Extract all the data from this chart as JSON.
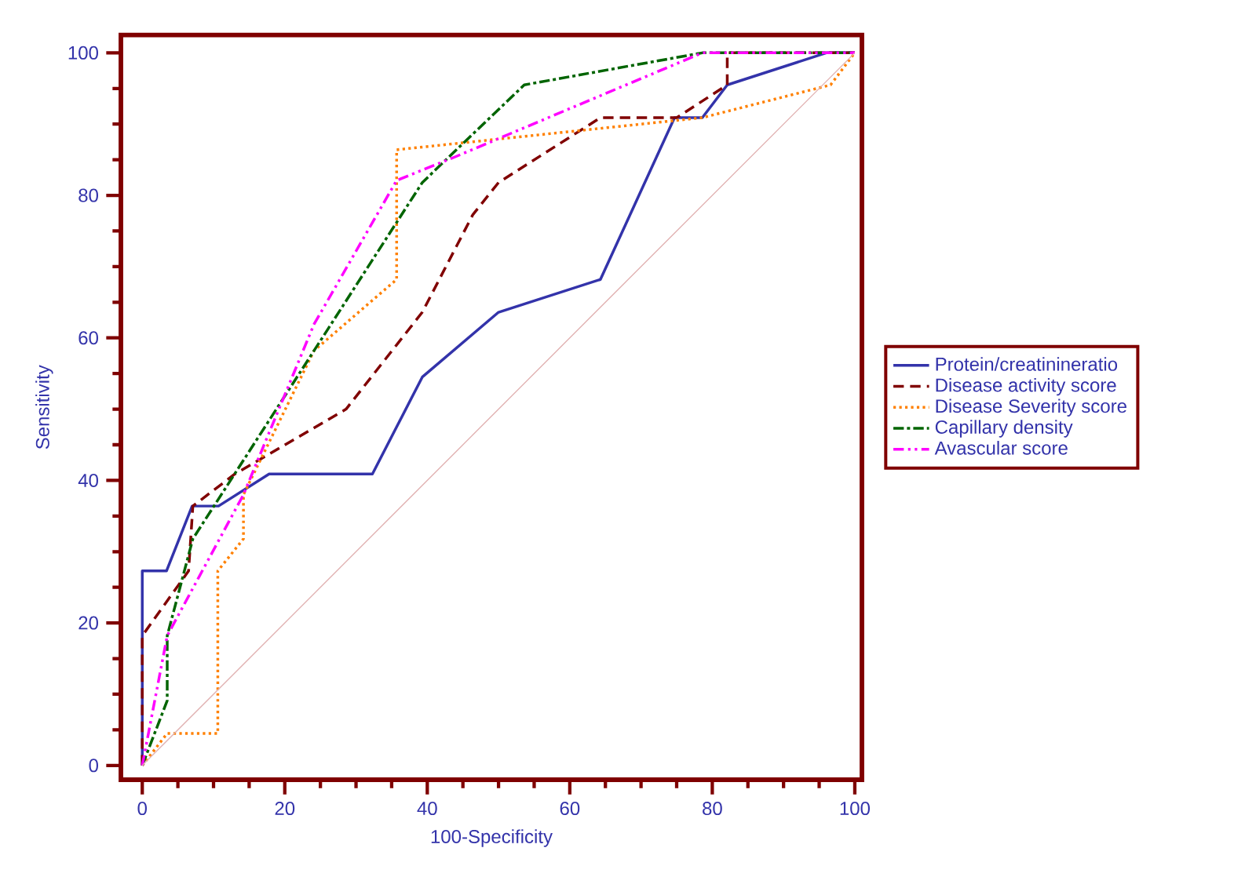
{
  "chart_data": {
    "type": "line",
    "xlabel": "100-Specificity",
    "ylabel": "Sensitivity",
    "xlim": [
      -3,
      101
    ],
    "ylim": [
      -2,
      102.5
    ],
    "xticks": [
      0,
      20,
      40,
      60,
      80,
      100
    ],
    "yticks": [
      0,
      20,
      40,
      60,
      80,
      100
    ],
    "legend": "right",
    "series": [
      {
        "name": "Protein/creatinineratio",
        "color": "#3333aa",
        "line_style": "solid",
        "x": [
          0,
          0,
          3.4,
          7.0,
          10.7,
          17.8,
          32.3,
          39.3,
          50,
          64.3,
          74.7,
          78.6,
          82.1,
          96,
          100
        ],
        "values": [
          0,
          27.3,
          27.3,
          36.4,
          36.4,
          40.9,
          40.9,
          54.5,
          63.6,
          68.2,
          90.9,
          90.9,
          95.5,
          100,
          100
        ]
      },
      {
        "name": "Disease activity score",
        "color": "#800000",
        "line_style": "dashed",
        "x": [
          0,
          0,
          6.5,
          7.1,
          13,
          28.6,
          39.3,
          46.4,
          50,
          64.3,
          75,
          82.1,
          82.1,
          100
        ],
        "values": [
          0,
          18.2,
          27.3,
          36.4,
          40.9,
          50,
          63.6,
          77.3,
          81.8,
          90.9,
          90.9,
          95.5,
          100,
          100
        ]
      },
      {
        "name": "Disease Severity score",
        "color": "#ff8000",
        "line_style": "dotted",
        "x": [
          0,
          3.5,
          10.6,
          10.6,
          14.2,
          14.2,
          24.1,
          35.7,
          35.7,
          78.6,
          96.6,
          100
        ],
        "values": [
          0,
          4.5,
          4.5,
          27.3,
          31.8,
          38,
          58.2,
          68.2,
          86.4,
          90.9,
          95.5,
          100
        ]
      },
      {
        "name": "Capillary density",
        "color": "#006400",
        "line_style": "dashdot",
        "x": [
          0,
          3.5,
          3.5,
          7.1,
          39.3,
          53.6,
          78.6,
          100
        ],
        "values": [
          0,
          9.1,
          18.2,
          31.8,
          81.8,
          95.5,
          100,
          100
        ]
      },
      {
        "name": "Avascular score",
        "color": "#ff00ff",
        "line_style": "dashdotdot",
        "x": [
          0,
          3.5,
          14.2,
          24.1,
          35.7,
          43.9,
          78.6,
          100
        ],
        "values": [
          0,
          18.2,
          38,
          61.9,
          82.1,
          85.4,
          100,
          100
        ]
      },
      {
        "color": "#e0b0b0",
        "line_style": "solid",
        "x": [
          0,
          100
        ],
        "values": [
          0,
          100
        ]
      }
    ]
  }
}
